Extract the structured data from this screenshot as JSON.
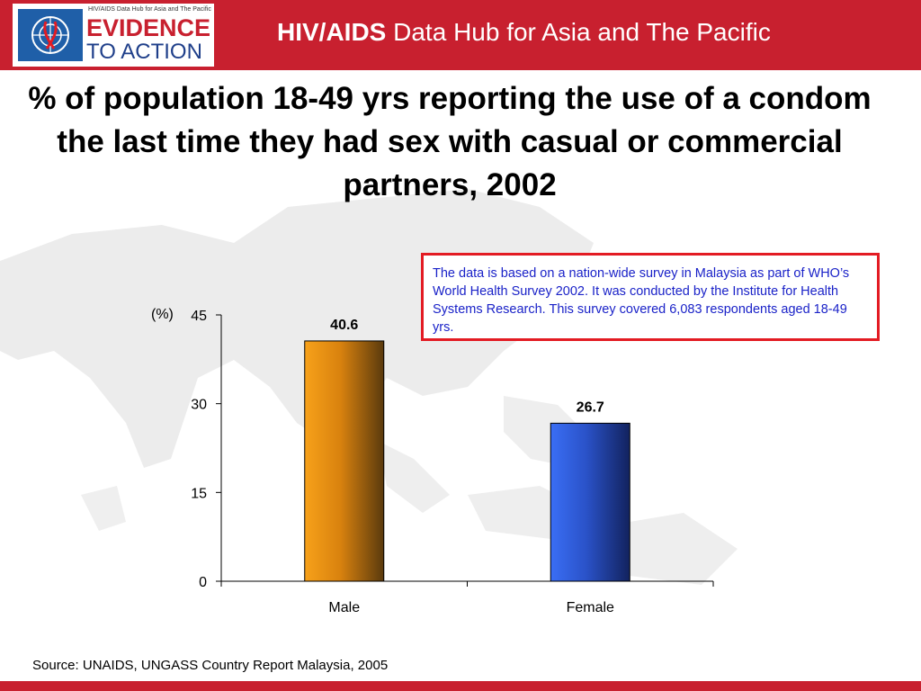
{
  "header": {
    "logo_small_text": "HIV/AIDS Data Hub for Asia and The Pacific",
    "logo_line1": "EVIDENCE",
    "logo_line2": "TO ACTION",
    "title_bold": "HIV/AIDS",
    "title_rest": " Data Hub for Asia and The Pacific"
  },
  "colors": {
    "header_red": "#c8202f",
    "note_border": "#e31b23",
    "note_text": "#1a22c8",
    "male_bar": "#f39b12",
    "female_bar": "#2f5fe8"
  },
  "title": "% of population 18-49 yrs reporting the use of a condom the last time they had sex with casual or commercial partners, 2002",
  "note": "The data is based on a nation-wide survey in Malaysia as part of WHO’s World Health Survey 2002. It was conducted by the Institute for Health Systems Research. This survey covered 6,083 respondents aged 18-49 yrs.",
  "source": "Source: UNAIDS, UNGASS Country Report Malaysia, 2005",
  "chart_data": {
    "type": "bar",
    "categories": [
      "Male",
      "Female"
    ],
    "values": [
      40.6,
      26.7
    ],
    "data_labels": [
      "40.6",
      "26.7"
    ],
    "ylabel": "(%)",
    "ylim": [
      0,
      45
    ],
    "yticks": [
      0,
      15,
      30,
      45
    ],
    "grid": false,
    "legend": "none"
  }
}
